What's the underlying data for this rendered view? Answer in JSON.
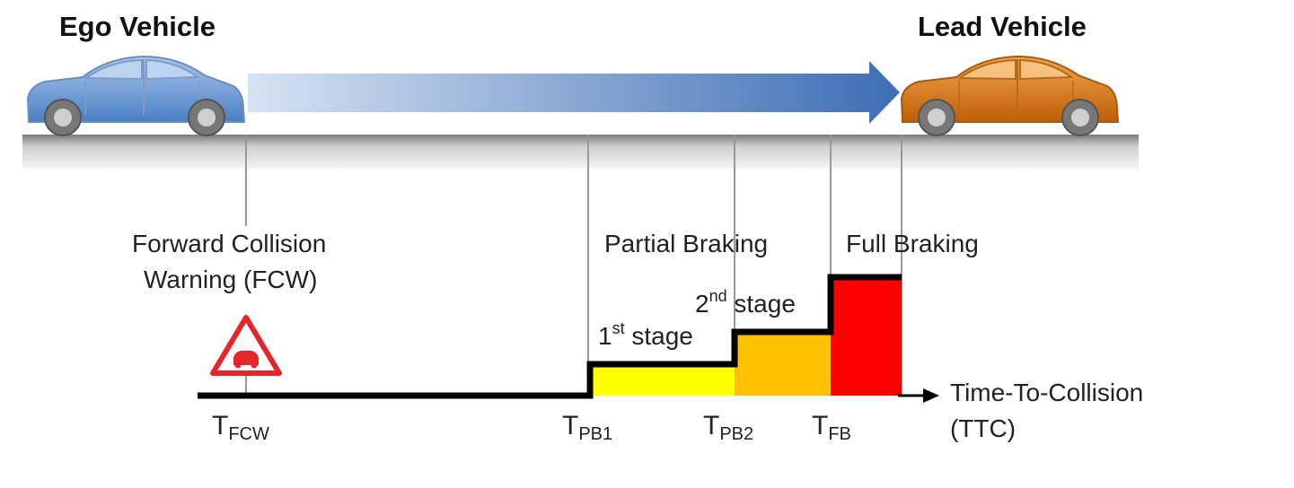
{
  "titles": {
    "ego": "Ego Vehicle",
    "lead": "Lead Vehicle"
  },
  "fcw": {
    "line1": "Forward Collision",
    "line2": "Warning (FCW)",
    "icon": "warning-triangle-car-icon"
  },
  "phases": {
    "partial": "Partial Braking",
    "full": "Full Braking"
  },
  "stages": {
    "first": {
      "num": "1",
      "sup": "st",
      "word": " stage"
    },
    "second": {
      "num": "2",
      "sup": "nd",
      "word": " stage"
    }
  },
  "axis": {
    "line1": "Time-To-Collision",
    "line2": "(TTC)"
  },
  "ticks": {
    "fcw": {
      "main": "T",
      "sub": "FCW"
    },
    "pb1": {
      "main": "T",
      "sub": "PB1"
    },
    "pb2": {
      "main": "T",
      "sub": "PB2"
    },
    "fb": {
      "main": "T",
      "sub": "FB"
    }
  },
  "colors": {
    "ego_car": "#5b8fd0",
    "lead_car": "#d9700f",
    "arrow": "#3d6db4",
    "stage1": "#ffff00",
    "stage2": "#ffc000",
    "full_braking": "#ff0000",
    "warning_red": "#e3262c"
  }
}
